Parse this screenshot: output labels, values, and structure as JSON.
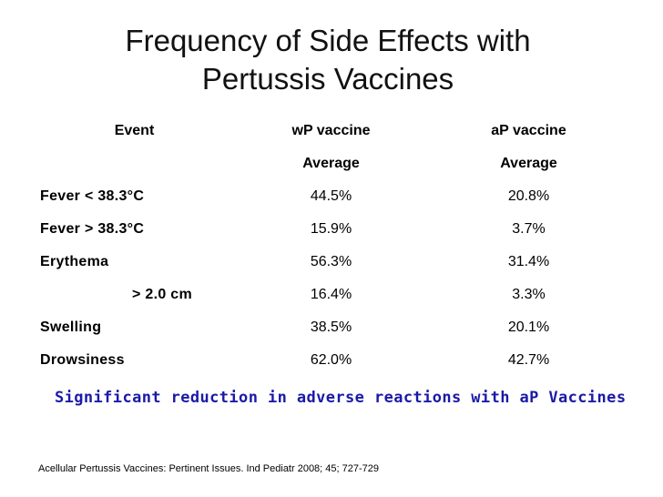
{
  "slide": {
    "title_line1": "Frequency of Side Effects with",
    "title_line2": "Pertussis Vaccines"
  },
  "table": {
    "headers": {
      "event": "Event",
      "wp": "wP vaccine",
      "ap": "aP vaccine",
      "wp_sub": "Average",
      "ap_sub": "Average"
    },
    "rows": [
      {
        "event": "Fever < 38.3°C",
        "wp": "44.5%",
        "ap": "20.8%"
      },
      {
        "event": "Fever > 38.3°C",
        "wp": "15.9%",
        "ap": "3.7%"
      },
      {
        "event": "Erythema",
        "wp": "56.3%",
        "ap": "31.4%"
      },
      {
        "event": "> 2.0 cm",
        "wp": "16.4%",
        "ap": "3.3%"
      },
      {
        "event": "Swelling",
        "wp": "38.5%",
        "ap": "20.1%"
      },
      {
        "event": "Drowsiness",
        "wp": "62.0%",
        "ap": "42.7%"
      }
    ]
  },
  "conclusion": "Significant reduction in adverse reactions with aP Vaccines",
  "citation": "Acellular Pertussis Vaccines: Pertinent Issues. Ind Pediatr 2008; 45; 727-729",
  "colors": {
    "conclusion": "#1a1aa8"
  }
}
